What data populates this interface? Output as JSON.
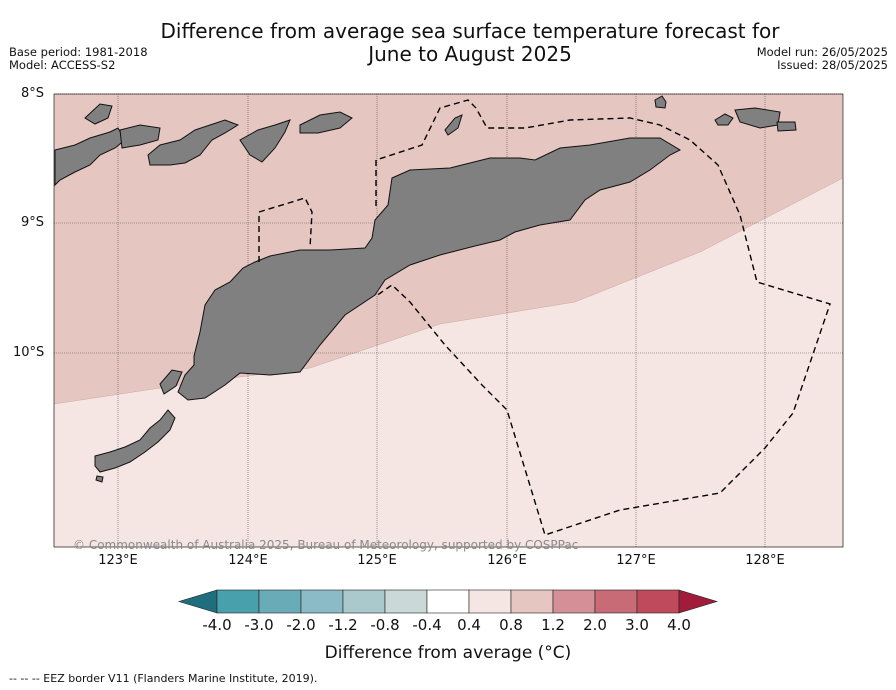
{
  "title": {
    "line1": "Difference from average sea surface temperature forecast for",
    "line2": "June to August 2025"
  },
  "meta_left": {
    "base_period": "Base period: 1981-2018",
    "model": "Model: ACCESS-S2"
  },
  "meta_right": {
    "model_run": "Model run: 26/05/2025",
    "issued": "Issued: 28/05/2025"
  },
  "latitude_labels": [
    "8°S",
    "9°S",
    "10°S"
  ],
  "longitude_labels": [
    "123°E",
    "124°E",
    "125°E",
    "126°E",
    "127°E",
    "128°E"
  ],
  "map_extent": {
    "lon": [
      122.5,
      128.6
    ],
    "lat": [
      -8.0,
      -11.5
    ]
  },
  "anomaly_zones": [
    {
      "range": "0.8 to 1.2",
      "color": "#e6c6c0",
      "area": "northern and western part of map"
    },
    {
      "range": "0.4 to 0.8",
      "color": "#f5e6e3",
      "area": "southern and eastern part of map"
    }
  ],
  "land_color": "#808080",
  "copyright": "© Commonwealth of Australia 2025, Bureau of Meteorology, supported by COSPPac",
  "colorbar": {
    "ticks": [
      "-4.0",
      "-3.0",
      "-2.0",
      "-1.2",
      "-0.8",
      "-0.4",
      "0.4",
      "0.8",
      "1.2",
      "2.0",
      "3.0",
      "4.0"
    ],
    "colors": [
      "#1f6e7e",
      "#48a0ac",
      "#6aabb8",
      "#8abbc6",
      "#a9c9cc",
      "#cbd8d8",
      "#ffffff",
      "#f5e6e3",
      "#e6c6c0",
      "#d49096",
      "#c96b76",
      "#bf4a5c",
      "#a01c3a"
    ],
    "label": "Difference from average (°C)"
  },
  "eez_note": "--  --  -- EEZ border V11 (Flanders Marine Institute, 2019)."
}
